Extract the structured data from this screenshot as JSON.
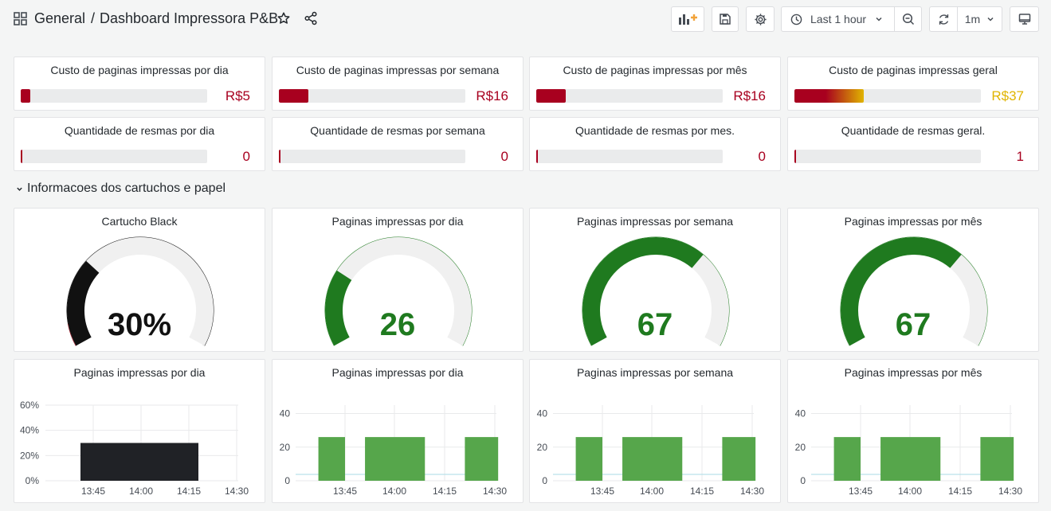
{
  "breadcrumb": {
    "folder": "General",
    "separator": "/",
    "title": "Dashboard Impressora P&B"
  },
  "toolbar": {
    "time_range": "Last 1 hour",
    "refresh_interval": "1m"
  },
  "colors": {
    "red": "#c4162a",
    "dark_red": "#a8001f",
    "orange": "#e0b400",
    "green": "#1f7a1f",
    "bar_green": "#56a64b",
    "black": "#111111"
  },
  "bar_gauges_row1": [
    {
      "title": "Custo de paginas impressas por dia",
      "value": "R$5",
      "fraction": 0.05
    },
    {
      "title": "Custo de paginas impressas por semana",
      "value": "R$16",
      "fraction": 0.16
    },
    {
      "title": "Custo de paginas impressas por mês",
      "value": "R$16",
      "fraction": 0.16
    },
    {
      "title": "Custo de paginas impressas geral",
      "value": "R$37",
      "fraction": 0.37
    }
  ],
  "bar_gauges_row2": [
    {
      "title": "Quantidade de resmas por dia",
      "value": "0",
      "fraction": 0
    },
    {
      "title": "Quantidade de resmas por semana",
      "value": "0",
      "fraction": 0
    },
    {
      "title": "Quantidade de resmas por mes.",
      "value": "0",
      "fraction": 0
    },
    {
      "title": "Quantidade de resmas geral.",
      "value": "1",
      "fraction": 0
    }
  ],
  "row_title": "Informacoes dos cartuchos e papel",
  "gauges": [
    {
      "title": "Cartucho Black",
      "value": "30%",
      "fraction": 0.3
    },
    {
      "title": "Paginas impressas por dia",
      "value": "26",
      "fraction": 0.26
    },
    {
      "title": "Paginas impressas por semana",
      "value": "67",
      "fraction": 0.67
    },
    {
      "title": "Paginas impressas por mês",
      "value": "67",
      "fraction": 0.67
    }
  ],
  "chart_data": [
    {
      "type": "bar",
      "title": "Paginas impressas por dia",
      "x_ticks": [
        "13:45",
        "14:00",
        "14:15",
        "14:30"
      ],
      "y_ticks": [
        "0%",
        "20%",
        "40%",
        "60%"
      ],
      "ylim": [
        0,
        60
      ],
      "bars": [
        {
          "start": "13:41",
          "end": "14:18",
          "value": 30
        }
      ],
      "grid": true
    },
    {
      "type": "bar",
      "title": "Paginas impressas por dia",
      "x_ticks": [
        "13:45",
        "14:00",
        "14:15",
        "14:30"
      ],
      "y_ticks": [
        "0",
        "20",
        "40"
      ],
      "ylim": [
        0,
        45
      ],
      "bars": [
        {
          "start": "13:37",
          "end": "13:45",
          "value": 26
        },
        {
          "start": "13:51",
          "end": "14:09",
          "value": 26
        },
        {
          "start": "14:21",
          "end": "14:31",
          "value": 26
        }
      ],
      "grid": true
    },
    {
      "type": "bar",
      "title": "Paginas impressas por semana",
      "x_ticks": [
        "13:45",
        "14:00",
        "14:15",
        "14:30"
      ],
      "y_ticks": [
        "0",
        "20",
        "40"
      ],
      "ylim": [
        0,
        45
      ],
      "bars": [
        {
          "start": "13:37",
          "end": "13:45",
          "value": 26
        },
        {
          "start": "13:51",
          "end": "14:09",
          "value": 26
        },
        {
          "start": "14:21",
          "end": "14:31",
          "value": 26
        }
      ],
      "grid": true
    },
    {
      "type": "bar",
      "title": "Paginas impressas por mês",
      "x_ticks": [
        "13:45",
        "14:00",
        "14:15",
        "14:30"
      ],
      "y_ticks": [
        "0",
        "20",
        "40"
      ],
      "ylim": [
        0,
        45
      ],
      "bars": [
        {
          "start": "13:37",
          "end": "13:45",
          "value": 26
        },
        {
          "start": "13:51",
          "end": "14:09",
          "value": 26
        },
        {
          "start": "14:21",
          "end": "14:31",
          "value": 26
        }
      ],
      "grid": true
    }
  ]
}
